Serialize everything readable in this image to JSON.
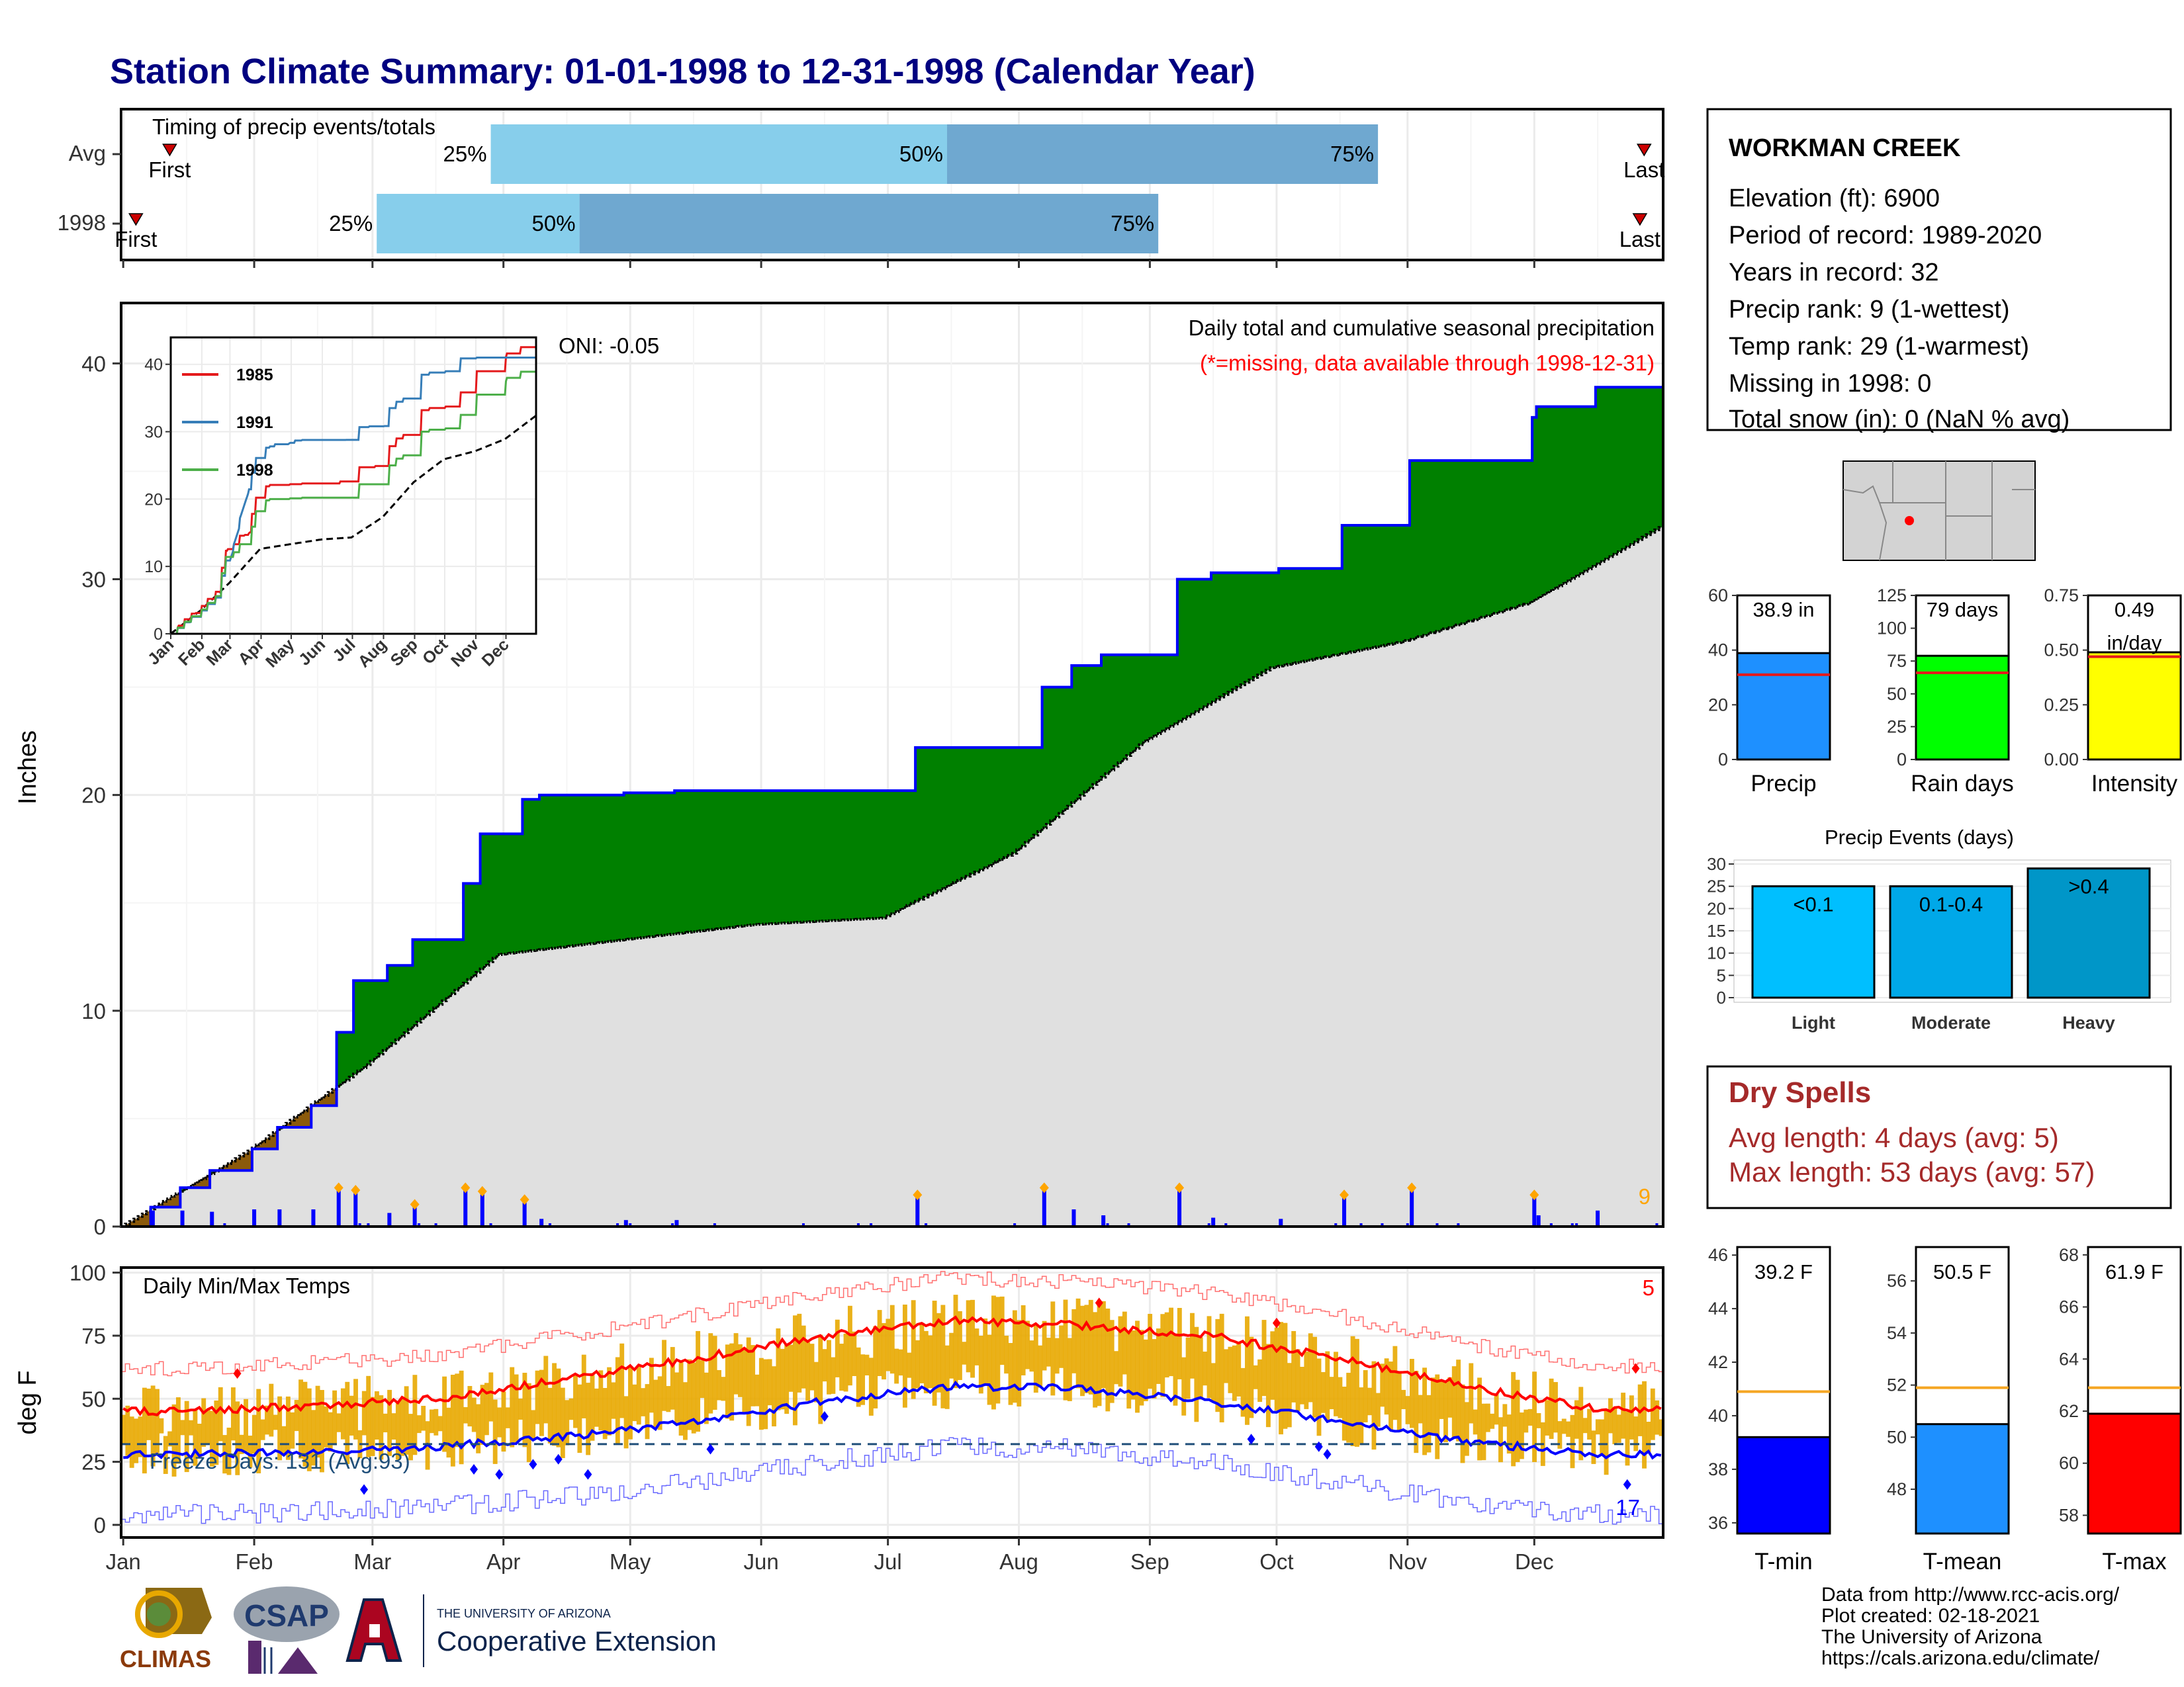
{
  "title": "Station Climate Summary: 01-01-1998 to 12-31-1998 (Calendar Year)",
  "timing": {
    "title": "Timing of precip events/totals",
    "rows": [
      {
        "label": "Avg",
        "first_label": "First",
        "last_label": "Last",
        "first_date": "01-12",
        "last_date": "12-27",
        "p25_date": "03-29",
        "p50_date": "07-15",
        "p75_date": "10-25"
      },
      {
        "label": "1998",
        "first_label": "First",
        "last_label": "Last",
        "first_date": "01-04",
        "last_date": "12-26",
        "p25_date": "03-02",
        "p50_date": "04-19",
        "p75_date": "09-03"
      }
    ],
    "pct_labels": [
      "25%",
      "50%",
      "75%"
    ]
  },
  "precip_panel": {
    "ylabel": "Inches",
    "yticks": [
      0,
      10,
      20,
      30,
      40
    ],
    "oni": "ONI: -0.05",
    "subtitle": "Daily total and cumulative seasonal precipitation",
    "missing_note": "(*=missing, data available through 1998-12-31)",
    "count_label": "9",
    "colors": {
      "above": "#008000",
      "below": "#8B5A0B",
      "avg_fill": "#E0E0E0",
      "line": "#0000FF",
      "bars": "#0000FF",
      "extreme": "#FFA500"
    }
  },
  "inset": {
    "yticks": [
      0,
      10,
      20,
      30,
      40
    ],
    "xticks": [
      "Jan",
      "Feb",
      "Mar",
      "Apr",
      "May",
      "Jun",
      "Jul",
      "Aug",
      "Sep",
      "Oct",
      "Nov",
      "Dec"
    ],
    "legend": [
      {
        "name": "1985",
        "color": "#E41A1C"
      },
      {
        "name": "1991",
        "color": "#377EB8"
      },
      {
        "name": "1998",
        "color": "#4DAF4A"
      }
    ]
  },
  "temp_panel": {
    "ylabel": "deg F",
    "title": "Daily Min/Max Temps",
    "yticks": [
      0,
      25,
      50,
      75,
      100
    ],
    "freeze_label": "Freeze Days: 131 (Avg:93)",
    "freeze_line": 32,
    "hot_count": "5",
    "cold_count": "17",
    "colors": {
      "bars": "#E8A800",
      "avg_max": "#FF0000",
      "avg_min": "#0000FF"
    }
  },
  "months": [
    "Jan",
    "Feb",
    "Mar",
    "Apr",
    "May",
    "Jun",
    "Jul",
    "Aug",
    "Sep",
    "Oct",
    "Nov",
    "Dec"
  ],
  "station": {
    "name": "WORKMAN CREEK",
    "lines": [
      "Elevation (ft): 6900",
      "Period of record: 1989-2020",
      "Years in record: 32",
      "Precip rank: 9 (1-wettest)",
      "Temp rank: 29 (1-warmest)",
      "Missing in 1998: 0",
      "Total snow (in): 0 (NaN % avg)"
    ]
  },
  "summary_bars": [
    {
      "label": "Precip",
      "value": 38.9,
      "avg": 31,
      "value_label": "38.9 in",
      "color": "#1E90FF",
      "ymax": 60,
      "yticks": [
        "0",
        "20",
        "40",
        "60"
      ]
    },
    {
      "label": "Rain days",
      "value": 79,
      "avg": 66,
      "value_label": "79 days",
      "color": "#00FF00",
      "ymax": 125,
      "yticks": [
        "0",
        "25",
        "50",
        "75",
        "100",
        "125"
      ]
    },
    {
      "label": "Intensity",
      "value": 0.49,
      "avg": 0.47,
      "value_label": "0.49",
      "value_label2": "in/day",
      "color": "#FFFF00",
      "ymax": 0.75,
      "yticks": [
        "0.00",
        "0.25",
        "0.50",
        "0.75"
      ]
    }
  ],
  "precip_events": {
    "title": "Precip Events (days)",
    "yticks": [
      "0",
      "5",
      "10",
      "15",
      "20",
      "25",
      "30"
    ],
    "categories": [
      "Light",
      "Moderate",
      "Heavy"
    ],
    "values": [
      25,
      25,
      29
    ],
    "value_labels": [
      "<0.1",
      "0.1-0.4",
      ">0.4"
    ],
    "colors": [
      "#00BFFF",
      "#00A8E8",
      "#0096C8"
    ]
  },
  "dry_spells": {
    "title": "Dry Spells",
    "avg_length": "Avg length: 4 days (avg: 5)",
    "max_length": "Max length: 53 days (avg: 57)"
  },
  "temp_bars": [
    {
      "label": "T-min",
      "value": 39.2,
      "avg": 40.9,
      "value_label": "39.2 F",
      "color": "#0000FF",
      "ymin": 35.6,
      "ymax": 46.3,
      "yticks": [
        "36",
        "38",
        "40",
        "42",
        "44",
        "46"
      ]
    },
    {
      "label": "T-mean",
      "value": 50.5,
      "avg": 51.9,
      "value_label": "50.5 F",
      "color": "#1E90FF",
      "ymin": 46.3,
      "ymax": 57.3,
      "yticks": [
        "48",
        "50",
        "52",
        "54",
        "56"
      ]
    },
    {
      "label": "T-max",
      "value": 61.9,
      "avg": 62.9,
      "value_label": "61.9 F",
      "color": "#FF0000",
      "ymin": 57.3,
      "ymax": 68.3,
      "yticks": [
        "58",
        "60",
        "62",
        "64",
        "66",
        "68"
      ]
    }
  ],
  "logos": {
    "climas": "CLIMAS",
    "csap": "CSAP",
    "ua_small": "THE UNIVERSITY OF ARIZONA",
    "ua_ext": "Cooperative Extension"
  },
  "credits": [
    "Data from http://www.rcc-acis.org/",
    "Plot created: 02-18-2021",
    "The University of Arizona",
    "https://cals.arizona.edu/climate/"
  ],
  "chart_data": [
    {
      "type": "area",
      "title": "Daily total and cumulative seasonal precipitation",
      "ylabel": "Inches",
      "ylim": [
        0,
        42
      ],
      "x_unit": "day of year",
      "series": [
        {
          "name": "1998",
          "x": [
            1,
            8,
            15,
            22,
            32,
            38,
            46,
            52,
            56,
            60,
            64,
            70,
            76,
            82,
            86,
            92,
            96,
            100,
            106,
            112,
            120,
            132,
            145,
            165,
            186,
            189,
            199,
            212,
            219,
            226,
            233,
            244,
            251,
            259,
            275,
            276,
            290,
            306,
            318,
            335,
            336,
            350,
            365
          ],
          "values": [
            0,
            0.9,
            1.8,
            2.6,
            3.6,
            4.6,
            5.6,
            9.0,
            11.4,
            11.4,
            12.1,
            13.3,
            13.3,
            15.9,
            18.2,
            18.2,
            19.8,
            20.0,
            20.0,
            20.0,
            20.1,
            20.2,
            20.2,
            20.2,
            20.2,
            22.2,
            22.2,
            22.2,
            25.0,
            26.0,
            26.5,
            26.5,
            30.0,
            30.3,
            30.5,
            30.5,
            32.5,
            35.5,
            35.5,
            37.5,
            38.0,
            38.9,
            38.9
          ]
        },
        {
          "name": "Average",
          "x": [
            1,
            31,
            59,
            90,
            120,
            151,
            181,
            212,
            243,
            273,
            304,
            334,
            365
          ],
          "values": [
            0,
            3.5,
            7.5,
            12.6,
            13.3,
            14.0,
            14.3,
            17.3,
            22.5,
            25.9,
            27.1,
            28.9,
            32.4
          ]
        }
      ]
    },
    {
      "type": "line",
      "title": "Daily Min/Max Temps",
      "ylabel": "deg F",
      "ylim": [
        -5,
        102
      ],
      "x": [
        "Jan",
        "Feb",
        "Mar",
        "Apr",
        "May",
        "Jun",
        "Jul",
        "Aug",
        "Sep",
        "Oct",
        "Nov",
        "Dec"
      ],
      "series": [
        {
          "name": "Avg max",
          "values": [
            45,
            47,
            50,
            58,
            66,
            75,
            81,
            79,
            75,
            66,
            55,
            46
          ]
        },
        {
          "name": "Avg min",
          "values": [
            28,
            29,
            31,
            35,
            41,
            49,
            55,
            54,
            49,
            41,
            33,
            28
          ]
        }
      ]
    },
    {
      "type": "bar",
      "categories": [
        "Precip",
        "Rain days",
        "Intensity"
      ],
      "values": [
        38.9,
        79,
        0.49
      ]
    },
    {
      "type": "bar",
      "title": "Precip Events (days)",
      "categories": [
        "Light",
        "Moderate",
        "Heavy"
      ],
      "values": [
        25,
        25,
        29
      ]
    },
    {
      "type": "bar",
      "categories": [
        "T-min",
        "T-mean",
        "T-max"
      ],
      "values": [
        39.2,
        50.5,
        61.9
      ]
    }
  ]
}
